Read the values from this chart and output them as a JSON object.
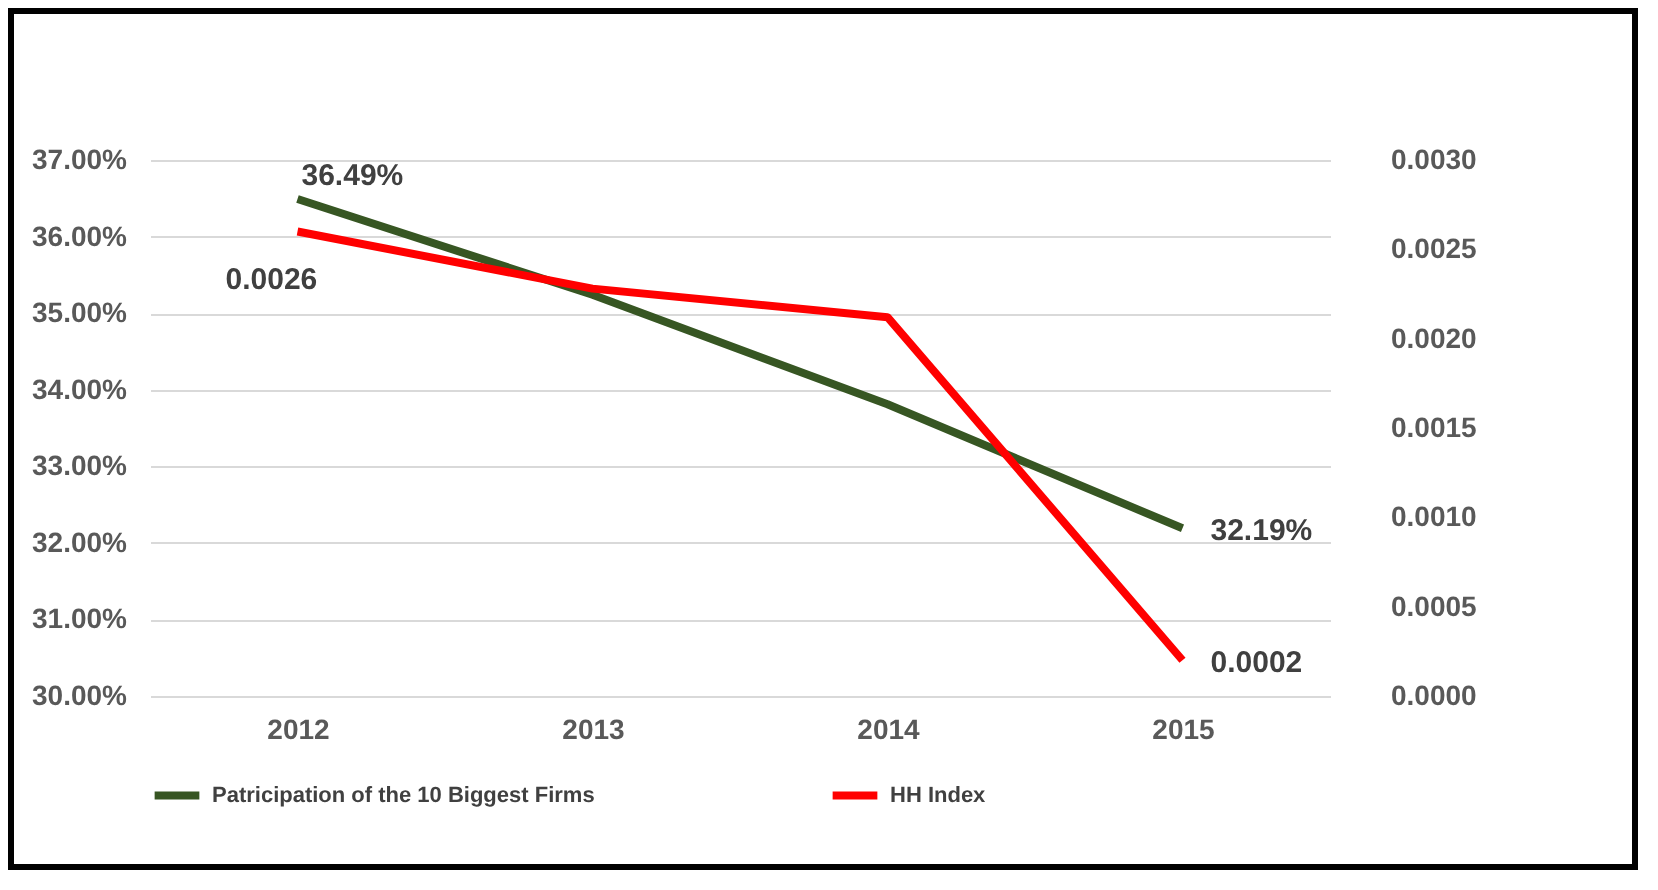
{
  "chart_data": {
    "type": "line",
    "categories": [
      "2012",
      "2013",
      "2014",
      "2015"
    ],
    "series": [
      {
        "name": "Patricipation of the 10 Biggest Firms",
        "color": "#375623",
        "values": [
          36.49,
          35.24,
          33.81,
          32.19
        ],
        "value_labels": [
          "36.49%",
          null,
          null,
          "32.19%"
        ]
      },
      {
        "name": "HH Index",
        "color": "#ff0000",
        "axis": "y2",
        "values": [
          0.0026,
          0.00228,
          0.00212,
          0.0002
        ],
        "value_labels": [
          "0.0026",
          null,
          null,
          "0.0002"
        ]
      }
    ],
    "ylim": [
      30,
      37
    ],
    "yticks": [
      {
        "value": 30,
        "label": "30.00%"
      },
      {
        "value": 31,
        "label": "31.00%"
      },
      {
        "value": 32,
        "label": "32.00%"
      },
      {
        "value": 33,
        "label": "33.00%"
      },
      {
        "value": 34,
        "label": "34.00%"
      },
      {
        "value": 35,
        "label": "35.00%"
      },
      {
        "value": 36,
        "label": "36.00%"
      },
      {
        "value": 37,
        "label": "37.00%"
      }
    ],
    "y2lim": [
      0,
      0.003
    ],
    "y2ticks": [
      {
        "value": 0,
        "label": "0.0000"
      },
      {
        "value": 0.0005,
        "label": "0.0005"
      },
      {
        "value": 0.001,
        "label": "0.0010"
      },
      {
        "value": 0.0015,
        "label": "0.0015"
      },
      {
        "value": 0.002,
        "label": "0.0020"
      },
      {
        "value": 0.0025,
        "label": "0.0025"
      },
      {
        "value": 0.003,
        "label": "0.0030"
      }
    ],
    "grid": "y",
    "legend": "bottom",
    "marker": "none",
    "line_style": "solid"
  }
}
